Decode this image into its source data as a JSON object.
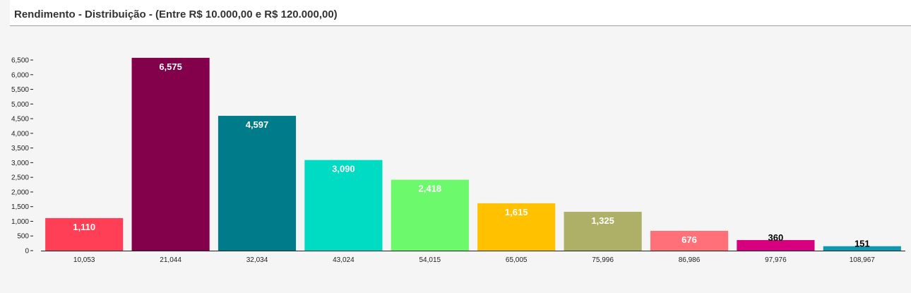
{
  "header": {
    "title": "Rendimento - Distribuição - (Entre R$ 10.000,00 e R$ 120.000,00)"
  },
  "chart_data": {
    "type": "bar",
    "title": "Rendimento - Distribuição - (Entre R$ 10.000,00 e R$ 120.000,00)",
    "xlabel": "",
    "ylabel": "",
    "ylim": [
      0,
      6500
    ],
    "yticks": [
      "0",
      "500",
      "1,000",
      "1,500",
      "2,000",
      "2,500",
      "3,000",
      "3,500",
      "4,000",
      "4,500",
      "5,000",
      "5,500",
      "6,000",
      "6,500"
    ],
    "ytick_values": [
      0,
      500,
      1000,
      1500,
      2000,
      2500,
      3000,
      3500,
      4000,
      4500,
      5000,
      5500,
      6000,
      6500
    ],
    "categories": [
      "10,053",
      "21,044",
      "32,034",
      "43,024",
      "54,015",
      "65,005",
      "75,996",
      "86,986",
      "97,976",
      "108,967"
    ],
    "values": [
      1110,
      6575,
      4597,
      3090,
      2418,
      1615,
      1325,
      676,
      360,
      151
    ],
    "value_labels": [
      "1,110",
      "6,575",
      "4,597",
      "3,090",
      "2,418",
      "1,615",
      "1,325",
      "676",
      "360",
      "151"
    ],
    "colors": [
      "#ff3f55",
      "#83004a",
      "#007b89",
      "#00dbc3",
      "#6cfa6c",
      "#ffc100",
      "#aeb068",
      "#ff7079",
      "#d6007f",
      "#1098b3"
    ],
    "label_colors": [
      "#ffffff",
      "#ffffff",
      "#ffffff",
      "#ffffff",
      "#ffffff",
      "#ffffff",
      "#ffffff",
      "#ffffff",
      "#000000",
      "#000000"
    ],
    "grid": false,
    "legend": "none"
  }
}
